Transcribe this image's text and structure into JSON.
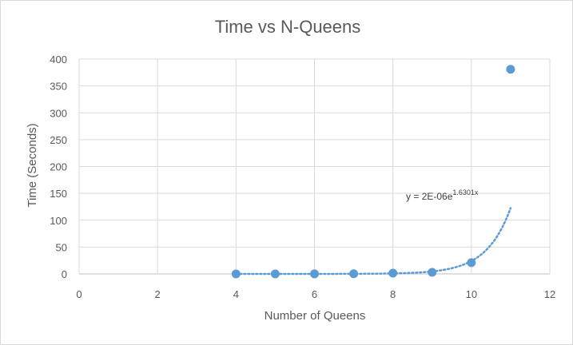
{
  "chart_data": {
    "type": "scatter",
    "title": "Time vs N-Queens",
    "xlabel": "Number of Queens",
    "ylabel": "Time (Seconds)",
    "xlim": [
      0,
      12
    ],
    "ylim": [
      0,
      400
    ],
    "xticks": [
      0,
      2,
      4,
      6,
      8,
      10,
      12
    ],
    "yticks": [
      0,
      50,
      100,
      150,
      200,
      250,
      300,
      350,
      400
    ],
    "grid": true,
    "legend": "none",
    "series": [
      {
        "x": [
          4,
          5,
          6,
          7,
          8,
          9,
          10,
          11
        ],
        "y": [
          0.01,
          0.03,
          0.1,
          0.4,
          1.5,
          3,
          21,
          381
        ],
        "color": "#5b9bd5"
      }
    ],
    "trendline": {
      "type": "exponential",
      "a": 2e-06,
      "b": 1.6301,
      "equation_main": "y = 2E-06e",
      "equation_exp": "1.6301x",
      "x_range": [
        4,
        11
      ],
      "color": "#5b9bd5"
    }
  }
}
